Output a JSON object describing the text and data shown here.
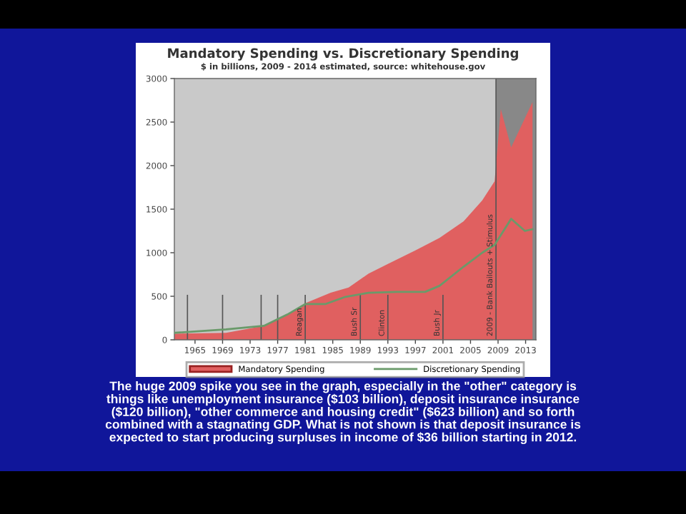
{
  "chart_data": {
    "type": "area",
    "title": "Mandatory Spending vs. Discretionary Spending",
    "subtitle": "$ in billions, 2009 - 2014 estimated, source: whitehouse.gov",
    "series": [
      {
        "name": "Mandatory Spending",
        "color": "#e06060",
        "x": [
          1962,
          1969.5,
          1975,
          1978.4,
          1981,
          1984.7,
          1987.3,
          1990.2,
          1993,
          1997.1,
          2000.5,
          2004,
          2006.7,
          2008.5,
          2009.4,
          2010.9,
          2014
        ],
        "values": [
          70,
          80,
          160,
          290,
          420,
          540,
          600,
          760,
          870,
          1030,
          1170,
          1360,
          1600,
          1820,
          2650,
          2210,
          2730
        ]
      },
      {
        "name": "Discretionary Spending",
        "type": "line",
        "color": "#6a9a6a",
        "x": [
          1962,
          1969.5,
          1975,
          1978.4,
          1981,
          1983.9,
          1986.7,
          1990.2,
          1994.3,
          1998.4,
          2000.5,
          2004,
          2006.7,
          2008.5,
          2010.9,
          2012.9,
          2014
        ],
        "values": [
          80,
          120,
          160,
          290,
          410,
          410,
          490,
          540,
          550,
          550,
          620,
          840,
          1000,
          1090,
          1390,
          1250,
          1270
        ]
      }
    ],
    "xlim": [
      1962,
      2014.5
    ],
    "ylim": [
      0,
      3000
    ],
    "xticks": [
      1965,
      1969,
      1973,
      1977,
      1981,
      1985,
      1989,
      1993,
      1997,
      2001,
      2005,
      2009,
      2013
    ],
    "yticks": [
      0,
      500,
      1000,
      1500,
      2000,
      2500,
      3000
    ],
    "bands": [
      {
        "axis": "x",
        "from": 2008.7,
        "to": 2014.5,
        "color": "#888888"
      }
    ],
    "ref_lines": [
      {
        "axis": "x",
        "value": 1963.9,
        "label": null
      },
      {
        "axis": "x",
        "value": 1969,
        "label": null
      },
      {
        "axis": "x",
        "value": 1974.6,
        "label": null
      },
      {
        "axis": "x",
        "value": 1977,
        "label": null
      },
      {
        "axis": "x",
        "value": 1981,
        "label": "Reagan"
      },
      {
        "axis": "x",
        "value": 1989,
        "label": "Bush Sr"
      },
      {
        "axis": "x",
        "value": 1993,
        "label": "Clinton"
      },
      {
        "axis": "x",
        "value": 2001,
        "label": "Bush Jr"
      },
      {
        "axis": "x",
        "value": 2008.7,
        "label": "2009 - Bank Bailouts + Stimulus"
      }
    ],
    "legend": "bottom",
    "grid": false,
    "annotations": [
      "The huge 2009 spike you see in the graph, especially in the \"other\" category is\nthings like unemployment insurance ($103 billion), deposit insurance insurance\n($120 billion), \"other commerce and housing credit\" ($623 billion) and so forth\ncombined with a stagnating GDP. What is not shown is that deposit insurance is\nexpected to start producing surpluses in income of $36 billion starting in 2012."
    ]
  }
}
